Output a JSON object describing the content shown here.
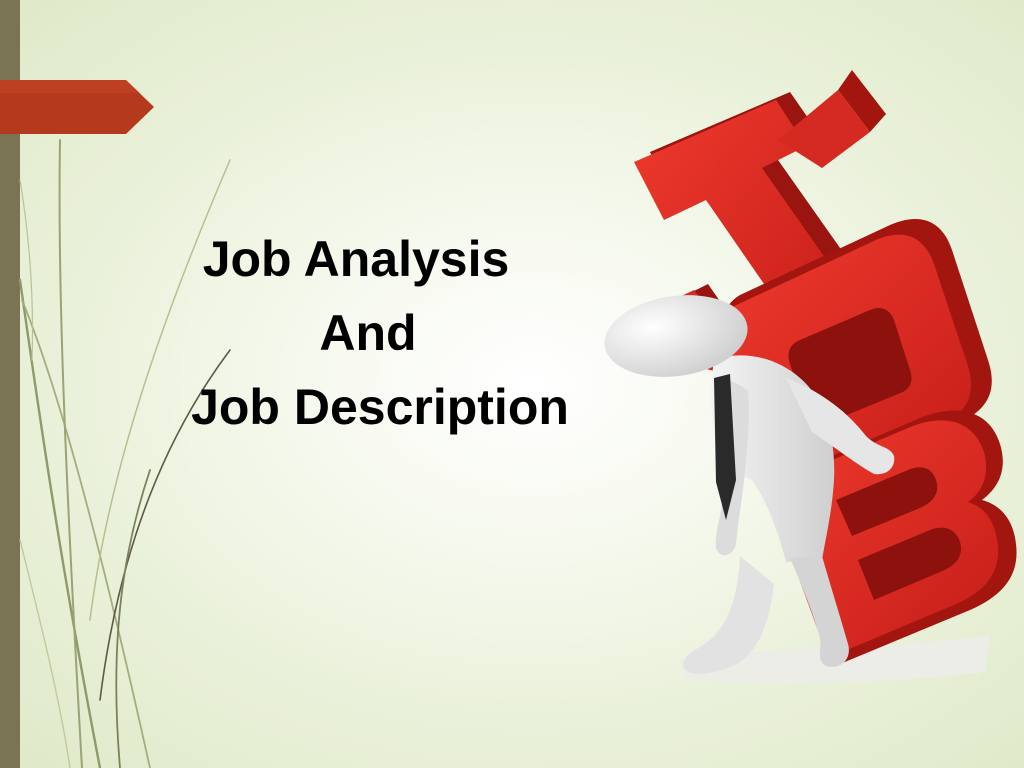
{
  "slide": {
    "title_lines": [
      "Job Analysis",
      "And",
      "Job Description"
    ]
  },
  "illustration": {
    "icon": "person-carrying-job-letters-icon",
    "letters_text": "JOB"
  },
  "colors": {
    "accent_bar": "#7a7454",
    "arrow_tab": "#b5391c",
    "letters_red": "#d9251f",
    "title_text": "#000000"
  }
}
